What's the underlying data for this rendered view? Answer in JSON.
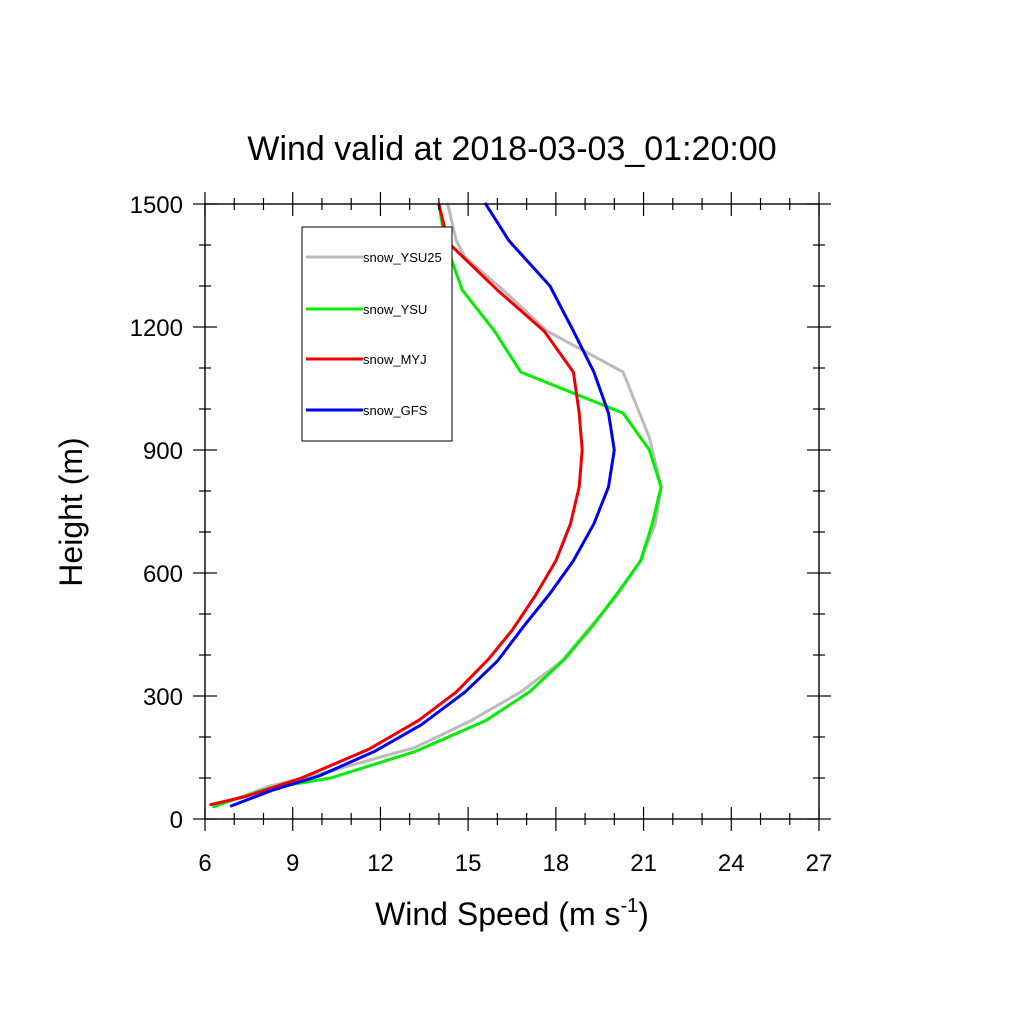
{
  "chart_data": {
    "type": "line",
    "title": "Wind valid at 2018-03-03_01:20:00",
    "xlabel": "Wind Speed (m s",
    "xlabel_sup": "-1",
    "xlabel_close": ")",
    "ylabel": "Height (m)",
    "xlim": [
      6,
      27
    ],
    "ylim": [
      0,
      1500
    ],
    "xticks": [
      "6",
      "9",
      "12",
      "15",
      "18",
      "21",
      "24",
      "27"
    ],
    "yticks": [
      "0",
      "300",
      "600",
      "900",
      "1200",
      "1500"
    ],
    "legend_position": "top-left",
    "series": [
      {
        "name": "snow_YSU25",
        "color": "#bbbbbb",
        "points": [
          [
            6.3,
            30
          ],
          [
            6.9,
            45
          ],
          [
            8.2,
            80
          ],
          [
            10.2,
            115
          ],
          [
            13.2,
            175
          ],
          [
            15.1,
            240
          ],
          [
            16.8,
            310
          ],
          [
            18.2,
            385
          ],
          [
            19.2,
            470
          ],
          [
            20.1,
            545
          ],
          [
            20.9,
            630
          ],
          [
            21.4,
            720
          ],
          [
            21.6,
            810
          ],
          [
            21.2,
            930
          ],
          [
            20.3,
            1090
          ],
          [
            17.7,
            1190
          ],
          [
            16.2,
            1290
          ],
          [
            14.9,
            1370
          ],
          [
            14.6,
            1410
          ],
          [
            14.3,
            1500
          ]
        ]
      },
      {
        "name": "snow_YSU",
        "color": "#00ee00",
        "points": [
          [
            6.3,
            30
          ],
          [
            6.9,
            45
          ],
          [
            8.2,
            75
          ],
          [
            10.3,
            100
          ],
          [
            13.2,
            165
          ],
          [
            15.6,
            240
          ],
          [
            17.1,
            310
          ],
          [
            18.3,
            390
          ],
          [
            19.3,
            475
          ],
          [
            20.2,
            560
          ],
          [
            20.9,
            630
          ],
          [
            21.3,
            720
          ],
          [
            21.6,
            810
          ],
          [
            21.2,
            900
          ],
          [
            20.3,
            990
          ],
          [
            16.8,
            1090
          ],
          [
            15.9,
            1190
          ],
          [
            14.8,
            1290
          ],
          [
            14.2,
            1410
          ],
          [
            14.0,
            1500
          ]
        ]
      },
      {
        "name": "snow_MYJ",
        "color": "#ee0000",
        "points": [
          [
            6.2,
            35
          ],
          [
            7.4,
            55
          ],
          [
            9.3,
            100
          ],
          [
            11.6,
            170
          ],
          [
            13.3,
            240
          ],
          [
            14.6,
            310
          ],
          [
            15.7,
            390
          ],
          [
            16.5,
            460
          ],
          [
            17.3,
            545
          ],
          [
            18.0,
            630
          ],
          [
            18.5,
            720
          ],
          [
            18.8,
            810
          ],
          [
            18.9,
            900
          ],
          [
            18.8,
            990
          ],
          [
            18.6,
            1090
          ],
          [
            17.6,
            1190
          ],
          [
            16.0,
            1290
          ],
          [
            14.4,
            1400
          ],
          [
            14.2,
            1440
          ],
          [
            14.0,
            1500
          ]
        ]
      },
      {
        "name": "snow_GFS",
        "color": "#0000ee",
        "points": [
          [
            6.9,
            32
          ],
          [
            8.3,
            70
          ],
          [
            9.9,
            105
          ],
          [
            11.8,
            165
          ],
          [
            13.4,
            230
          ],
          [
            14.9,
            310
          ],
          [
            16.0,
            385
          ],
          [
            16.9,
            470
          ],
          [
            17.8,
            550
          ],
          [
            18.6,
            630
          ],
          [
            19.3,
            720
          ],
          [
            19.8,
            810
          ],
          [
            20.0,
            900
          ],
          [
            19.8,
            990
          ],
          [
            19.3,
            1090
          ],
          [
            18.6,
            1190
          ],
          [
            17.8,
            1300
          ],
          [
            16.4,
            1410
          ],
          [
            15.6,
            1500
          ]
        ]
      }
    ]
  }
}
